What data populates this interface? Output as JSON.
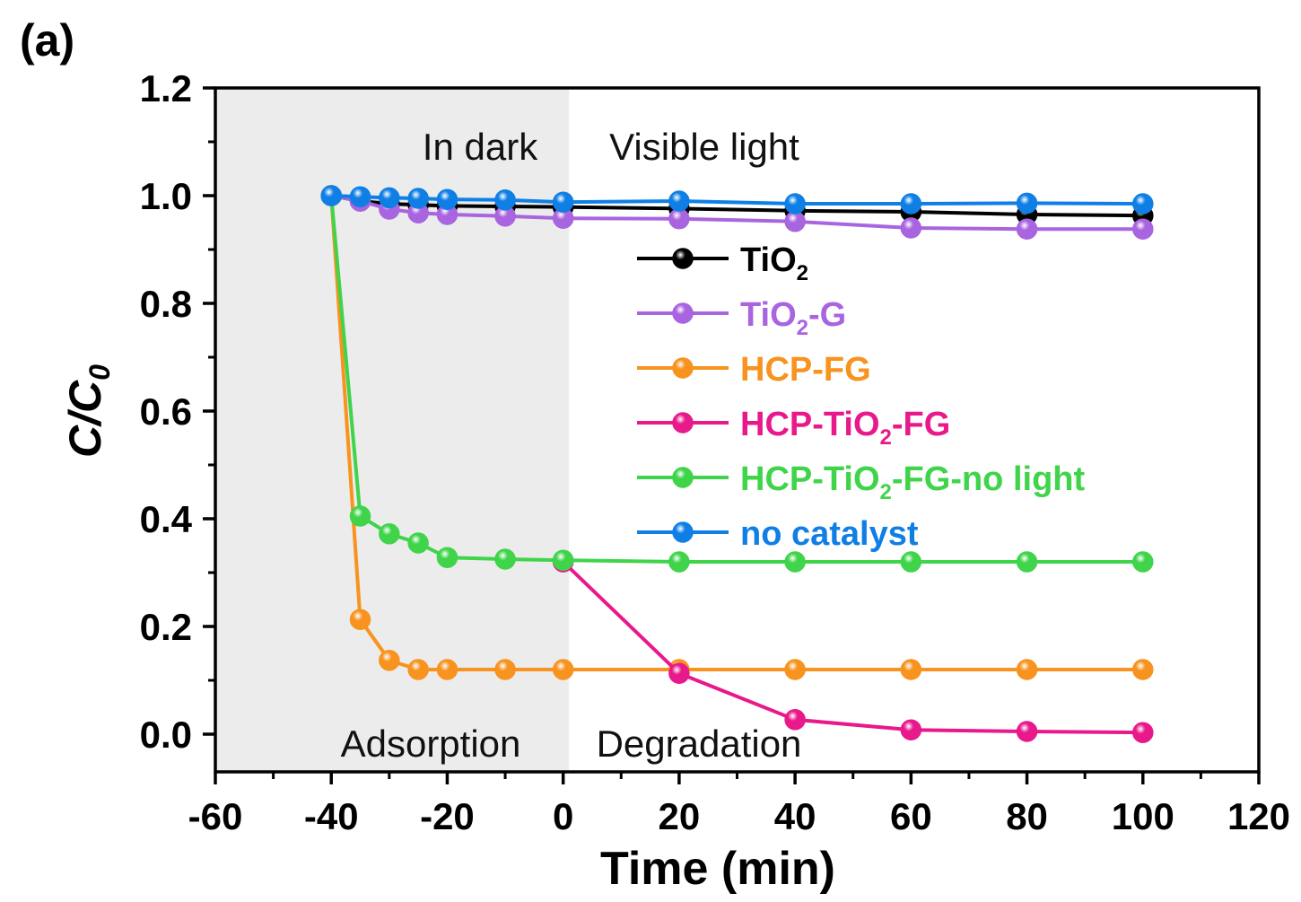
{
  "chart_data": {
    "type": "line",
    "panel_label": "(a)",
    "xlabel": "Time (min)",
    "ylabel": "C/C",
    "ylabel_sub": "0",
    "xlim": [
      -60,
      120
    ],
    "ylim": [
      -0.07,
      1.2
    ],
    "x_ticks": [
      -60,
      -40,
      -20,
      0,
      20,
      40,
      60,
      80,
      100,
      120
    ],
    "x_tick_labels": [
      "-60",
      "-40",
      "-20",
      "0",
      "20",
      "40",
      "60",
      "80",
      "100",
      "120"
    ],
    "y_ticks": [
      0.0,
      0.2,
      0.4,
      0.6,
      0.8,
      1.0,
      1.2
    ],
    "y_tick_labels": [
      "0.0",
      "0.2",
      "0.4",
      "0.6",
      "0.8",
      "1.0",
      "1.2"
    ],
    "shaded_region": {
      "x_from": -60,
      "x_to": 1,
      "color": "#ececec"
    },
    "annotations": {
      "in_dark": "In dark",
      "visible_light": "Visible light",
      "adsorption": "Adsorption",
      "degradation": "Degradation"
    },
    "legend_position": "center",
    "x": [
      -40,
      -35,
      -30,
      -25,
      -20,
      -10,
      0,
      20,
      40,
      60,
      80,
      100
    ],
    "series": [
      {
        "key": "tio2",
        "name": "TiO",
        "sub": "2",
        "suffix": "",
        "color": "#000000",
        "label_color": "#000000",
        "values": [
          1.0,
          0.99,
          0.985,
          0.983,
          0.981,
          0.98,
          0.979,
          0.976,
          0.972,
          0.97,
          0.965,
          0.963
        ]
      },
      {
        "key": "tio2g",
        "name": "TiO",
        "sub": "2",
        "suffix": "-G",
        "color": "#a964e0",
        "label_color": "#a964e0",
        "values": [
          1.0,
          0.99,
          0.975,
          0.968,
          0.965,
          0.962,
          0.958,
          0.957,
          0.952,
          0.94,
          0.938,
          0.938
        ]
      },
      {
        "key": "hcpfg",
        "name": "HCP-FG",
        "sub": "",
        "suffix": "",
        "color": "#f7931e",
        "label_color": "#f7931e",
        "values": [
          1.0,
          0.213,
          0.137,
          0.12,
          0.12,
          0.12,
          0.12,
          0.12,
          0.12,
          0.12,
          0.12,
          0.12
        ]
      },
      {
        "key": "hcptio2fg",
        "name": "HCP-TiO",
        "sub": "2",
        "suffix": "-FG",
        "color": "#e8198b",
        "label_color": "#e8198b",
        "values": [
          null,
          null,
          null,
          null,
          null,
          null,
          0.32,
          0.113,
          0.027,
          0.008,
          0.005,
          0.003
        ]
      },
      {
        "key": "nolight",
        "name": "HCP-TiO",
        "sub": "2",
        "suffix": "-FG-no light",
        "color": "#3fd44a",
        "label_color": "#3fd44a",
        "values": [
          1.0,
          0.405,
          0.372,
          0.355,
          0.328,
          0.325,
          0.323,
          0.32,
          0.32,
          0.32,
          0.32,
          0.32
        ]
      },
      {
        "key": "nocat",
        "name": "no catalyst",
        "sub": "",
        "suffix": "",
        "color": "#0f7fe6",
        "label_color": "#0f7fe6",
        "values": [
          1.0,
          0.998,
          0.996,
          0.995,
          0.993,
          0.992,
          0.988,
          0.99,
          0.985,
          0.985,
          0.986,
          0.985
        ]
      }
    ]
  }
}
